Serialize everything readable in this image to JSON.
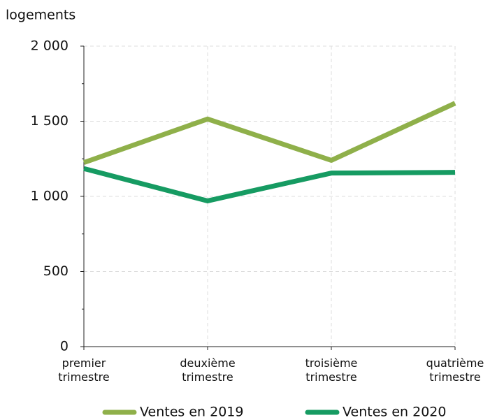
{
  "chart_data": {
    "type": "line",
    "y_label": "logements",
    "categories": [
      "premier trimestre",
      "deuxième trimestre",
      "troisième trimestre",
      "quatrième trimestre"
    ],
    "series": [
      {
        "name": "Ventes en 2019",
        "color": "#8fb04a",
        "values": [
          1225,
          1515,
          1240,
          1620
        ]
      },
      {
        "name": "Ventes en 2020",
        "color": "#169b62",
        "values": [
          1185,
          970,
          1155,
          1160
        ]
      }
    ],
    "ylim": [
      0,
      2000
    ],
    "yticks": [
      0,
      500,
      {
        "value": 1000,
        "label": "1 000"
      },
      {
        "value": 1500,
        "label": "1 500"
      },
      {
        "value": 2000,
        "label": "2 000"
      }
    ],
    "grid": true,
    "legend": "bottom"
  }
}
